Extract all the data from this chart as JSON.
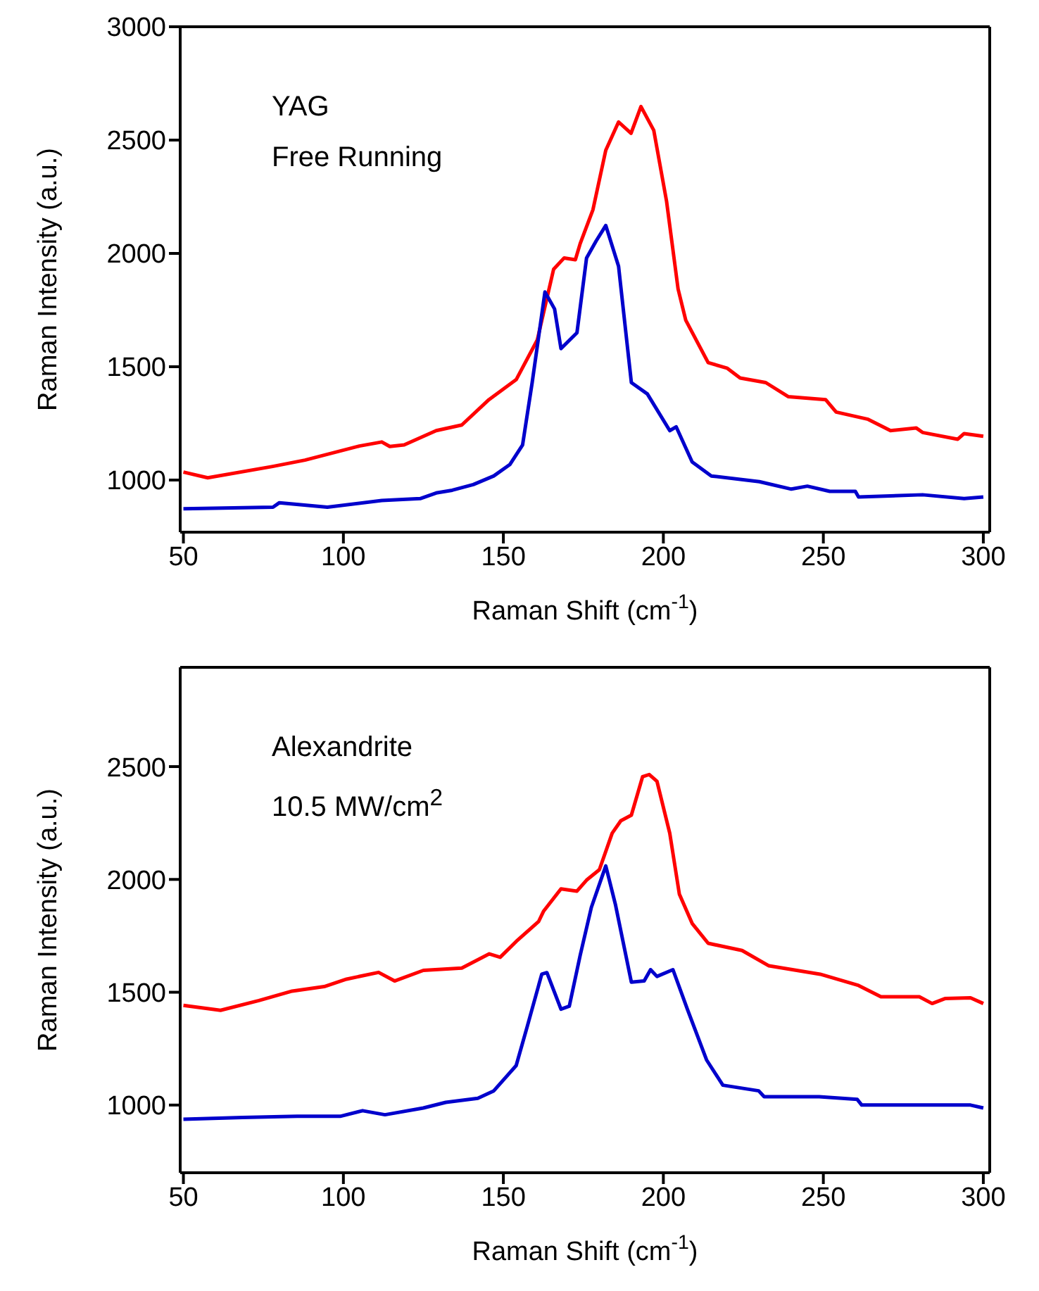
{
  "chart_data": [
    {
      "type": "line",
      "xlabel": "Raman Shift (cm$^{-1}$)",
      "ylabel": "Raman Intensity (a.u.)",
      "annotations": [
        "YAG",
        "Free Running"
      ],
      "xlim": [
        49,
        302
      ],
      "xticks": [
        50,
        100,
        150,
        200,
        250,
        300
      ],
      "ylim": [
        770,
        3000
      ],
      "yticks": [
        1000,
        1500,
        2000,
        2500,
        3000
      ],
      "grid": false,
      "marker": "none",
      "line_style": "solid",
      "series": [
        {
          "color": "#ff0000",
          "x": [
            50,
            57.6,
            77.9,
            88,
            105,
            112,
            114.5,
            119,
            129,
            137,
            145.5,
            154,
            160.6,
            165.7,
            169,
            172.5,
            174,
            178,
            182,
            186,
            189.9,
            193,
            197,
            201,
            204.6,
            207,
            214,
            220,
            224,
            232,
            239,
            250.7,
            254,
            264,
            271,
            279,
            281,
            292,
            294,
            300
          ],
          "values": [
            1035,
            1010,
            1060,
            1088,
            1150,
            1168,
            1148,
            1155,
            1218,
            1243,
            1355,
            1443,
            1618,
            1930,
            1980,
            1972,
            2043,
            2193,
            2455,
            2580,
            2530,
            2648,
            2543,
            2230,
            1843,
            1705,
            1518,
            1493,
            1450,
            1430,
            1368,
            1355,
            1300,
            1268,
            1218,
            1230,
            1210,
            1180,
            1205,
            1193
          ]
        },
        {
          "color": "#0000cc",
          "x": [
            50,
            78,
            80,
            95,
            112,
            124,
            129,
            134,
            140.6,
            147,
            152,
            156,
            159,
            163,
            166,
            168,
            173,
            176,
            179,
            182,
            186,
            190,
            195,
            202,
            204,
            209,
            215,
            230,
            240,
            245,
            252,
            260,
            261,
            281,
            294,
            300
          ],
          "values": [
            873,
            880,
            900,
            880,
            910,
            918,
            943,
            955,
            980,
            1018,
            1068,
            1155,
            1430,
            1830,
            1755,
            1580,
            1650,
            1980,
            2055,
            2123,
            1943,
            1430,
            1380,
            1218,
            1235,
            1080,
            1018,
            993,
            960,
            973,
            950,
            950,
            925,
            935,
            918,
            925
          ]
        }
      ]
    },
    {
      "type": "line",
      "xlabel": "Raman Shift (cm$^{-1}$)",
      "ylabel": "Raman Intensity (a.u.)",
      "annotations": [
        "Alexandrite",
        "10.5 MW/cm$^{2}$"
      ],
      "xlim": [
        49,
        302
      ],
      "xticks": [
        50,
        100,
        150,
        200,
        250,
        300
      ],
      "ylim": [
        700,
        2940
      ],
      "yticks": [
        1000,
        1500,
        2000,
        2500
      ],
      "grid": false,
      "marker": "none",
      "line_style": "solid",
      "series": [
        {
          "color": "#ff0000",
          "x": [
            50,
            61.6,
            73.6,
            84,
            94,
            101,
            111,
            116,
            125,
            137,
            145.6,
            149,
            154,
            161,
            162.6,
            168,
            173,
            176,
            180,
            184,
            186.7,
            190,
            193.5,
            195.6,
            198,
            202,
            205,
            209,
            214,
            224.6,
            233,
            249,
            261,
            268,
            280,
            284,
            288,
            296,
            300
          ],
          "values": [
            1442,
            1420,
            1463,
            1505,
            1525,
            1558,
            1588,
            1550,
            1597,
            1607,
            1670,
            1655,
            1725,
            1813,
            1860,
            1958,
            1948,
            1997,
            2043,
            2205,
            2260,
            2285,
            2455,
            2465,
            2435,
            2205,
            1935,
            1805,
            1717,
            1685,
            1617,
            1580,
            1530,
            1480,
            1480,
            1450,
            1472,
            1475,
            1450
          ]
        },
        {
          "color": "#0000cc",
          "x": [
            50,
            68.5,
            85.6,
            99,
            106,
            113,
            125,
            132,
            142,
            147,
            154,
            157.5,
            162,
            163.6,
            168,
            170.6,
            174,
            177.5,
            182,
            185,
            190,
            194,
            196,
            198,
            203,
            207.5,
            213.5,
            218.6,
            229.8,
            231.5,
            248.7,
            260.6,
            262,
            282.5,
            296,
            300
          ],
          "values": [
            937,
            945,
            950,
            950,
            975,
            957,
            987,
            1012,
            1030,
            1063,
            1175,
            1350,
            1580,
            1587,
            1425,
            1438,
            1663,
            1876,
            2060,
            1890,
            1545,
            1550,
            1600,
            1570,
            1600,
            1425,
            1200,
            1088,
            1063,
            1037,
            1037,
            1025,
            1000,
            1000,
            1000,
            987
          ]
        }
      ]
    }
  ]
}
